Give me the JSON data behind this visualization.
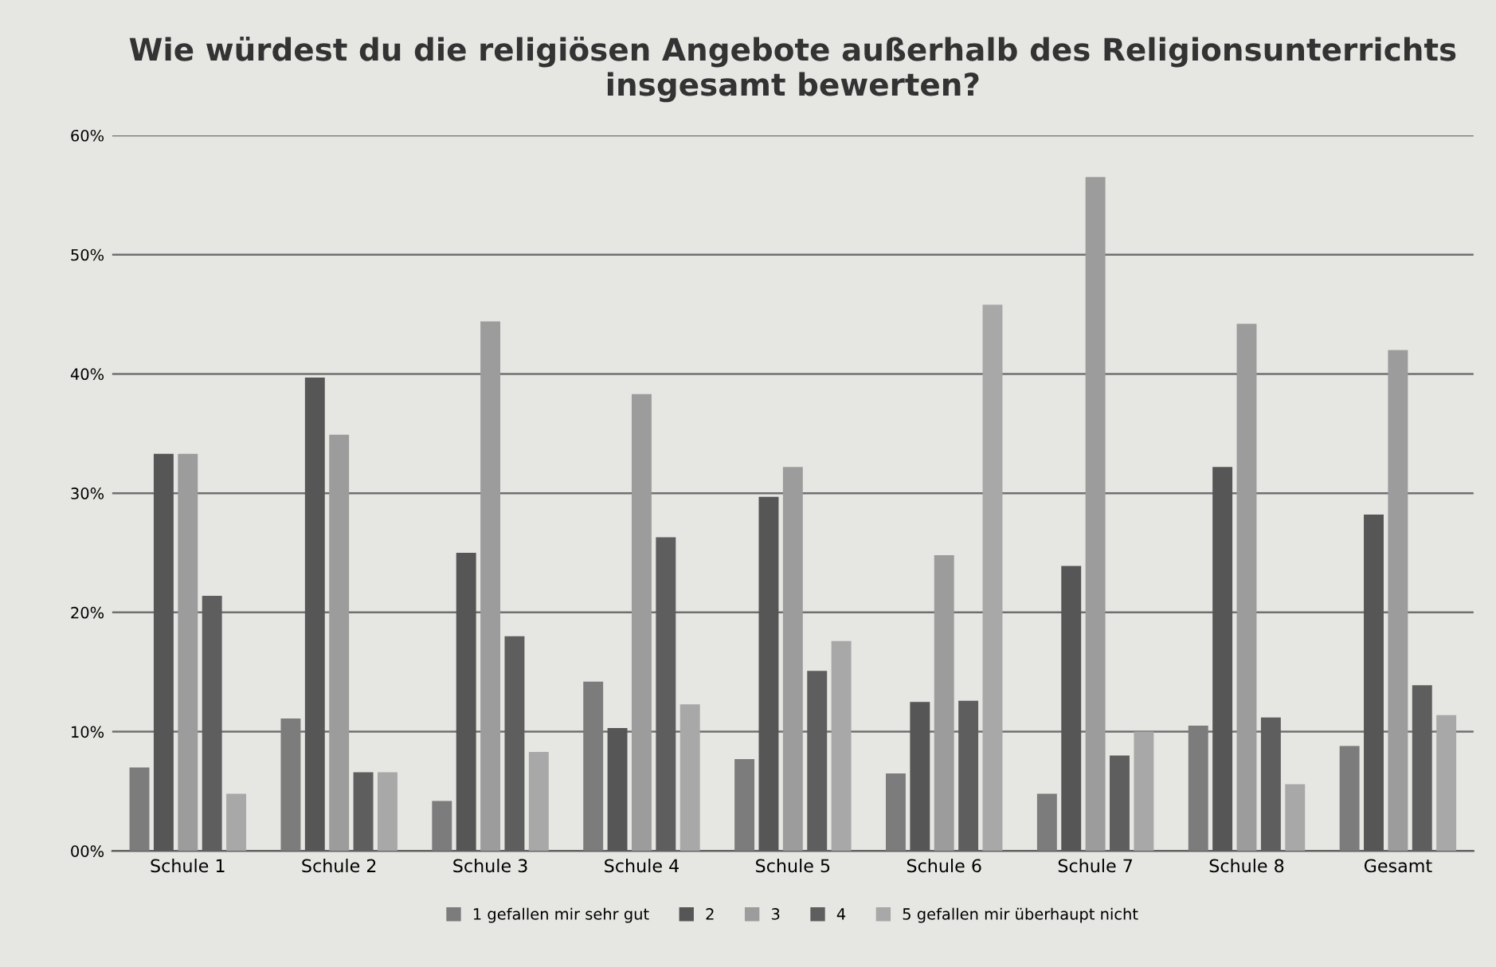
{
  "chart_data": {
    "type": "bar",
    "title": "Wie würdest du die religiösen Angebote außerhalb des Religionsunterrichts\ninsgesamt bewerten?",
    "categories": [
      "Schule 1",
      "Schule 2",
      "Schule 3",
      "Schule 4",
      "Schule 5",
      "Schule 6",
      "Schule 7",
      "Schule 8",
      "Gesamt"
    ],
    "series": [
      {
        "name": "1 gefallen mir sehr gut",
        "color": "#7c7c7c",
        "values": [
          7.0,
          11.1,
          4.2,
          14.2,
          7.7,
          6.5,
          4.8,
          10.5,
          8.8
        ]
      },
      {
        "name": "2",
        "color": "#565656",
        "values": [
          33.3,
          39.7,
          25.0,
          10.3,
          29.7,
          12.5,
          23.9,
          32.2,
          28.2
        ]
      },
      {
        "name": "3",
        "color": "#9c9c9c",
        "values": [
          33.3,
          34.9,
          44.4,
          38.3,
          32.2,
          24.8,
          56.5,
          44.2,
          42.0
        ]
      },
      {
        "name": "4",
        "color": "#5e5e5e",
        "values": [
          21.4,
          6.6,
          18.0,
          26.3,
          15.1,
          12.6,
          8.0,
          11.2,
          13.9
        ]
      },
      {
        "name": "5 gefallen mir überhaupt nicht",
        "color": "#a8a8a8",
        "values": [
          4.8,
          6.6,
          8.3,
          12.3,
          17.6,
          45.8,
          10.0,
          5.6,
          11.4
        ]
      }
    ],
    "ylim": [
      0,
      60
    ],
    "yticks": [
      {
        "value": 0,
        "label": "00%"
      },
      {
        "value": 10,
        "label": "10%"
      },
      {
        "value": 20,
        "label": "20%"
      },
      {
        "value": 30,
        "label": "30%"
      },
      {
        "value": 40,
        "label": "40%"
      },
      {
        "value": 50,
        "label": "50%"
      },
      {
        "value": 60,
        "label": "60%"
      }
    ],
    "grid": "y",
    "legend": "bottom"
  }
}
